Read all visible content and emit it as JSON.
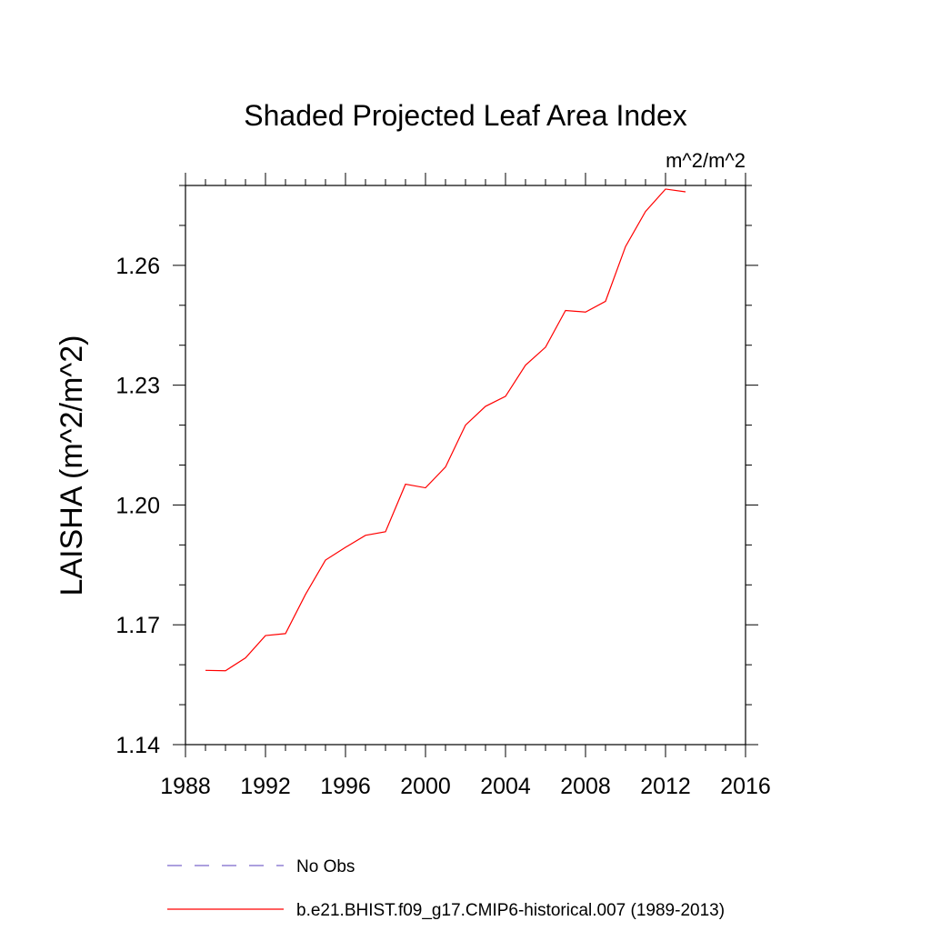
{
  "chart_data": {
    "type": "line",
    "title": "Shaded Projected Leaf Area Index",
    "units_label": "m^2/m^2",
    "ylabel": "LAISHA  (m^2/m^2)",
    "xlabel": "",
    "xlim": [
      1988,
      2016
    ],
    "ylim": [
      1.14,
      1.28
    ],
    "x_ticks": [
      1988,
      1992,
      1996,
      2000,
      2004,
      2008,
      2012,
      2016
    ],
    "x_tick_labels": [
      "1988",
      "1992",
      "1996",
      "2000",
      "2004",
      "2008",
      "2012",
      "2016"
    ],
    "y_ticks": [
      1.14,
      1.17,
      1.2,
      1.23,
      1.26
    ],
    "y_tick_labels": [
      "1.14",
      "1.17",
      "1.20",
      "1.23",
      "1.26"
    ],
    "y_minor_step": 0.01,
    "x_minor_step": 1,
    "grid": false,
    "legend_position": "bottom",
    "series": [
      {
        "name": "No Obs",
        "color": "#7b68c9",
        "dash": "dashed",
        "x": [],
        "values": []
      },
      {
        "name": "b.e21.BHIST.f09_g17.CMIP6-historical.007 (1989-2013)",
        "color": "#ff0000",
        "dash": "solid",
        "x": [
          1989,
          1990,
          1991,
          1992,
          1993,
          1994,
          1995,
          1996,
          1997,
          1998,
          1999,
          2000,
          2001,
          2002,
          2003,
          2004,
          2005,
          2006,
          2007,
          2008,
          2009,
          2010,
          2011,
          2012,
          2013
        ],
        "values": [
          1.1586,
          1.1585,
          1.1617,
          1.1673,
          1.1678,
          1.1776,
          1.1862,
          1.1894,
          1.1924,
          1.1933,
          1.2052,
          1.2043,
          1.2095,
          1.22,
          1.2247,
          1.2272,
          1.235,
          1.2395,
          1.2487,
          1.2483,
          1.251,
          1.2647,
          1.2735,
          1.2791,
          1.2784
        ]
      }
    ]
  }
}
